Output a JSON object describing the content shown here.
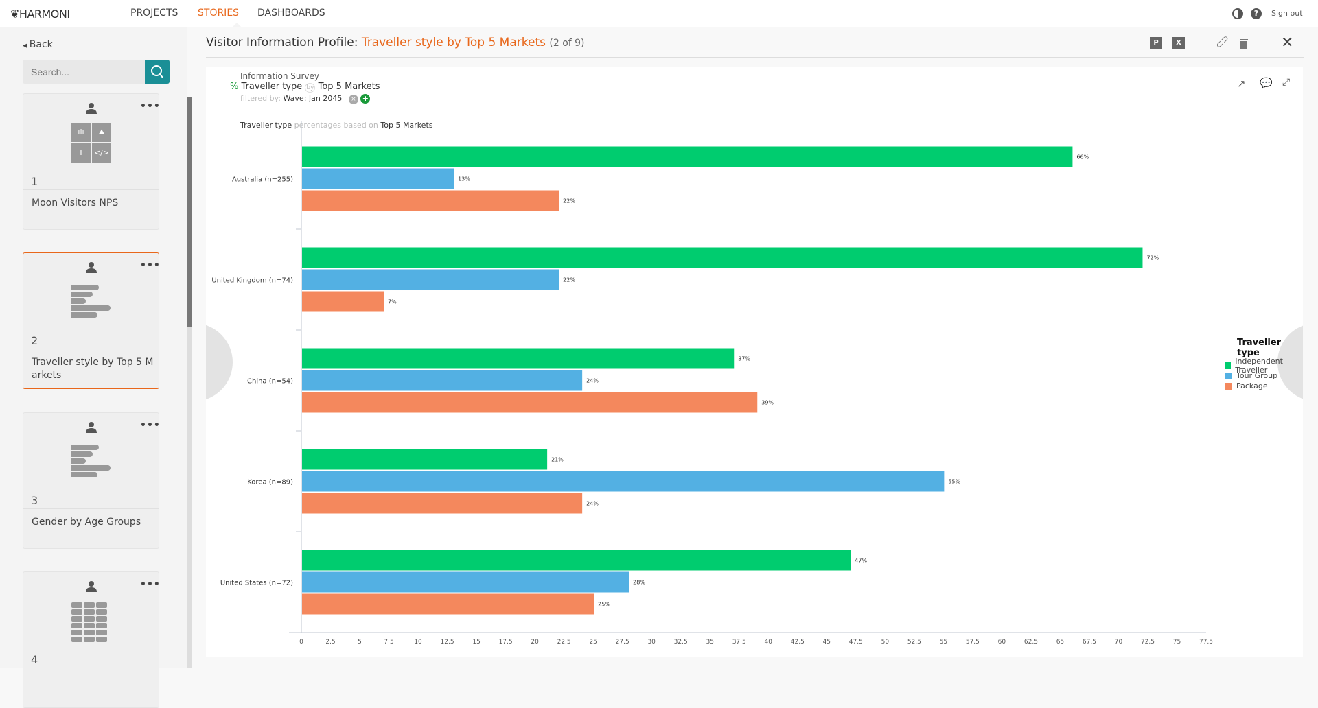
{
  "topbar": {
    "logo": "HARMONI",
    "nav": [
      "PROJECTS",
      "STORIES",
      "DASHBOARDS"
    ],
    "active": "STORIES",
    "sign_out": "Sign out",
    "icons": [
      "contrast-icon",
      "help-icon"
    ]
  },
  "sidebar": {
    "back": "Back",
    "search_placeholder": "Search...",
    "cards": [
      {
        "num": "1",
        "title": "Moon Visitors NPS",
        "thumb": "mixed-widgets"
      },
      {
        "num": "2",
        "title": "Traveller style by Top 5 Markets",
        "thumb": "bar-chart",
        "selected": true
      },
      {
        "num": "3",
        "title": "Gender by Age Groups",
        "thumb": "bar-chart"
      },
      {
        "num": "4",
        "title": "",
        "thumb": "table"
      }
    ]
  },
  "header": {
    "prefix": "Visitor Information Profile:",
    "story": "Traveller style by Top 5 Markets",
    "count": "(2 of 9)",
    "icons": [
      "powerpoint-icon",
      "excel-icon",
      "link-icon",
      "trash-icon",
      "close-icon"
    ]
  },
  "chart_meta": {
    "source": "Information Survey",
    "pct": "%",
    "row_var": "Traveller type",
    "by": "by",
    "col_var": "Top 5 Markets",
    "filtered_label": "filtered by:",
    "filter": "Wave: Jan 2045",
    "subtitle_a": "Traveller type",
    "subtitle_b": "percentages based on",
    "subtitle_c": "Top 5 Markets"
  },
  "chart_data": {
    "type": "bar",
    "orientation": "horizontal",
    "categories": [
      "Australia (n=255)",
      "United Kingdom (n=74)",
      "China (n=54)",
      "Korea (n=89)",
      "United States (n=72)"
    ],
    "series": [
      {
        "name": "Independent Traveller",
        "color": "#00cc6f",
        "values": [
          66,
          72,
          37,
          21,
          47
        ]
      },
      {
        "name": "Tour Group",
        "color": "#53b0e3",
        "values": [
          13,
          22,
          24,
          55,
          28
        ]
      },
      {
        "name": "Package",
        "color": "#f4885d",
        "values": [
          22,
          7,
          39,
          24,
          25
        ]
      }
    ],
    "xlim": [
      0,
      77.5
    ],
    "xticks": [
      0,
      2.5,
      5,
      7.5,
      10,
      12.5,
      15,
      17.5,
      20,
      22.5,
      25,
      27.5,
      30,
      32.5,
      35,
      37.5,
      40,
      42.5,
      45,
      47.5,
      50,
      52.5,
      55,
      57.5,
      60,
      62.5,
      65,
      67.5,
      70,
      72.5,
      75,
      77.5
    ],
    "value_suffix": "%",
    "legend_title": "Traveller type",
    "legend_position": "right",
    "grid": false
  }
}
